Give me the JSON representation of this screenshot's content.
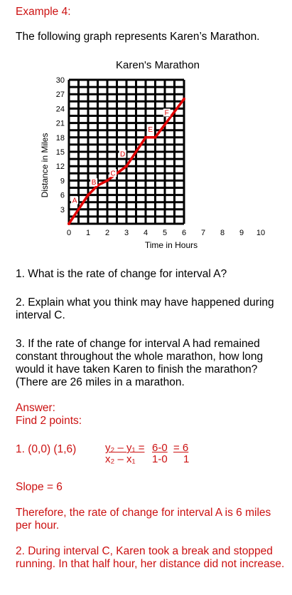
{
  "example_label": "Example 4:",
  "intro": "The following graph represents Karen’s Marathon.",
  "chart_data": {
    "type": "line",
    "title": "Karen's Marathon",
    "xlabel": "Time in Hours",
    "ylabel": "Distance in Miles",
    "xlim": [
      0,
      10
    ],
    "ylim": [
      0,
      30
    ],
    "x_ticks": [
      0,
      1,
      2,
      3,
      4,
      5,
      6,
      7,
      8,
      9,
      10
    ],
    "y_ticks": [
      3,
      6,
      9,
      12,
      15,
      18,
      21,
      24,
      27,
      30
    ],
    "grid": true,
    "series": [
      {
        "x": [
          0,
          1,
          1.5,
          2,
          3,
          4,
          4.5,
          6
        ],
        "y": [
          0,
          6,
          8,
          9,
          12,
          18,
          18,
          26
        ]
      }
    ],
    "segment_labels": [
      {
        "text": "A",
        "x": 0.3,
        "y": 4.5
      },
      {
        "text": "B",
        "x": 1.3,
        "y": 8.3
      },
      {
        "text": "C",
        "x": 2.3,
        "y": 10.2
      },
      {
        "text": "D",
        "x": 2.8,
        "y": 14.2
      },
      {
        "text": "E",
        "x": 4.25,
        "y": 19.3
      },
      {
        "text": "F",
        "x": 5.1,
        "y": 22.8
      }
    ],
    "line_color": "#e00000"
  },
  "questions": [
    "1. What is the rate of change for interval A?",
    "2. Explain what you think may have happened during interval C.",
    "3. If the rate of change for interval A had remained constant throughout the whole marathon, how long would it have taken Karen to finish the marathon? (There are 26 miles in a marathon."
  ],
  "answer": {
    "label": "Answer:",
    "find": "Find 2 points:",
    "step1_points": "1. (0,0) (1,6)",
    "formula_num": "y₂ – y₁ =",
    "formula_den": "x₂ – x₁",
    "calc_num": "6-0",
    "calc_den": "1-0",
    "result_num": "= 6",
    "result_den": "1",
    "slope": "Slope = 6",
    "therefore": "Therefore, the rate of change for interval A is 6 miles per hour.",
    "step2": "2. During interval C, Karen took a break and stopped running. In that half hour, her distance did not increase."
  }
}
